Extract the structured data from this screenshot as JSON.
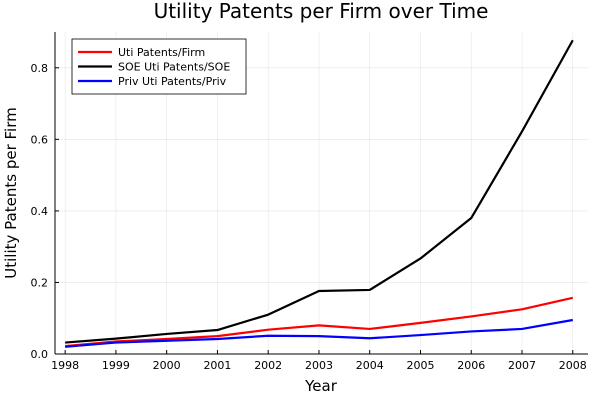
{
  "chart_data": {
    "type": "line",
    "title": "Utility Patents per Firm over Time",
    "xlabel": "Year",
    "ylabel": "Utility Patents per Firm",
    "x": [
      1998,
      1999,
      2000,
      2001,
      2002,
      2003,
      2004,
      2005,
      2006,
      2007,
      2008
    ],
    "xlim": [
      1997.8,
      2008.3
    ],
    "ylim": [
      0,
      0.9
    ],
    "yticks": [
      0.0,
      0.2,
      0.4,
      0.6,
      0.8
    ],
    "ytick_labels": [
      "0.0",
      "0.2",
      "0.4",
      "0.6",
      "0.8"
    ],
    "grid": true,
    "legend_position": "top-left",
    "series": [
      {
        "name": "Uti Patents/Firm",
        "color": "#ff0000",
        "values": [
          0.022,
          0.035,
          0.042,
          0.05,
          0.068,
          0.08,
          0.07,
          0.087,
          0.105,
          0.125,
          0.157
        ]
      },
      {
        "name": "SOE Uti Patents/SOE",
        "color": "#000000",
        "values": [
          0.032,
          0.043,
          0.056,
          0.067,
          0.11,
          0.176,
          0.179,
          0.267,
          0.38,
          0.622,
          0.877
        ]
      },
      {
        "name": "Priv Uti Patents/Priv",
        "color": "#0000ff",
        "values": [
          0.02,
          0.032,
          0.037,
          0.042,
          0.051,
          0.05,
          0.044,
          0.053,
          0.063,
          0.07,
          0.095
        ]
      }
    ]
  }
}
